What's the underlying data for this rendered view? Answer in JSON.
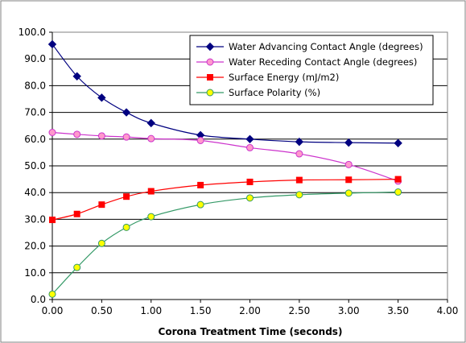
{
  "chart_data": {
    "type": "line",
    "title": "",
    "xlabel": "Corona Treatment Time (seconds)",
    "ylabel": "",
    "xlim": [
      0,
      4
    ],
    "ylim": [
      0,
      100
    ],
    "x_ticks": [
      "0.00",
      "0.50",
      "1.00",
      "1.50",
      "2.00",
      "2.50",
      "3.00",
      "3.50",
      "4.00"
    ],
    "y_ticks": [
      "0.0",
      "10.0",
      "20.0",
      "30.0",
      "40.0",
      "50.0",
      "60.0",
      "70.0",
      "80.0",
      "90.0",
      "100.0"
    ],
    "grid": "horizontal",
    "legend_position": "top-right",
    "series": [
      {
        "name": "Water Advancing Contact Angle (degrees)",
        "color": "#000080",
        "marker": "diamond",
        "x": [
          0,
          0.25,
          0.5,
          0.75,
          1,
          1.5,
          2,
          2.5,
          3,
          3.5
        ],
        "values": [
          95.5,
          83.5,
          75.5,
          70,
          66,
          61.5,
          60,
          59,
          58.7,
          58.5
        ]
      },
      {
        "name": "Water Receding Contact Angle (degrees)",
        "color": "#cc33cc",
        "marker": "circle",
        "x": [
          0,
          0.25,
          0.5,
          0.75,
          1,
          1.5,
          2,
          2.5,
          3,
          3.5
        ],
        "values": [
          62.5,
          61.8,
          61.2,
          60.8,
          60.2,
          59.5,
          56.8,
          54.5,
          50.5,
          44.3
        ]
      },
      {
        "name": "Surface Energy (mJ/m2)",
        "color": "#ff0000",
        "marker": "square",
        "x": [
          0,
          0.25,
          0.5,
          0.75,
          1,
          1.5,
          2,
          2.5,
          3,
          3.5
        ],
        "values": [
          29.8,
          32,
          35.5,
          38.5,
          40.5,
          42.8,
          44,
          44.7,
          44.8,
          45
        ]
      },
      {
        "name": "Surface Polarity (%)",
        "color": "#339966",
        "marker_fill": "#ffff00",
        "marker": "circle",
        "x": [
          0,
          0.25,
          0.5,
          0.75,
          1,
          1.5,
          2,
          2.5,
          3,
          3.5
        ],
        "values": [
          2,
          12,
          21,
          27,
          31,
          35.5,
          38,
          39.2,
          39.8,
          40.2
        ]
      }
    ]
  }
}
